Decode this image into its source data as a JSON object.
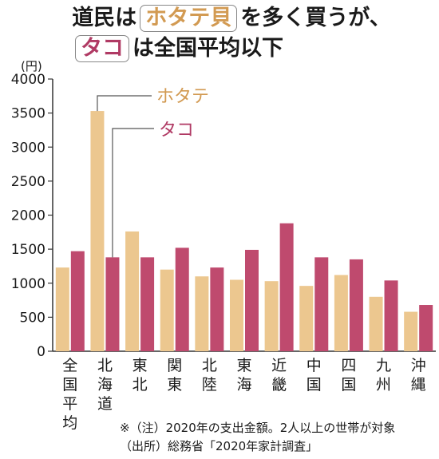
{
  "title": {
    "line1_before": "道民は",
    "line1_hotate": "ホタテ貝",
    "line1_after": "を多く買うが、",
    "line2_tako": "タコ",
    "line2_after": "は全国平均以下"
  },
  "colors": {
    "hotate": "#ecc78f",
    "tako": "#bf4a6e",
    "hotate_label": "#d29a52",
    "tako_label": "#b03a64",
    "axis": "#333333"
  },
  "footnotes": [
    "※（注）2020年の支出金額。2人以上の世帯が対象",
    "（出所）総務省「2020年家計調査」"
  ],
  "chart_data": {
    "type": "bar",
    "unit": "(円)",
    "categories": [
      "全国平均",
      "北海道",
      "東北",
      "関東",
      "北陸",
      "東海",
      "近畿",
      "中国",
      "四国",
      "九州",
      "沖縄"
    ],
    "series": [
      {
        "name": "ホタテ",
        "values": [
          1230,
          3530,
          1760,
          1200,
          1100,
          1050,
          1030,
          960,
          1120,
          800,
          580
        ]
      },
      {
        "name": "タコ",
        "values": [
          1470,
          1380,
          1380,
          1520,
          1230,
          1490,
          1880,
          1380,
          1350,
          1040,
          680
        ]
      }
    ],
    "yticks": [
      0,
      500,
      1000,
      1500,
      2000,
      2500,
      3000,
      3500,
      4000
    ],
    "ylim": [
      0,
      4000
    ],
    "grid": false,
    "legend_placement": "callouts"
  }
}
